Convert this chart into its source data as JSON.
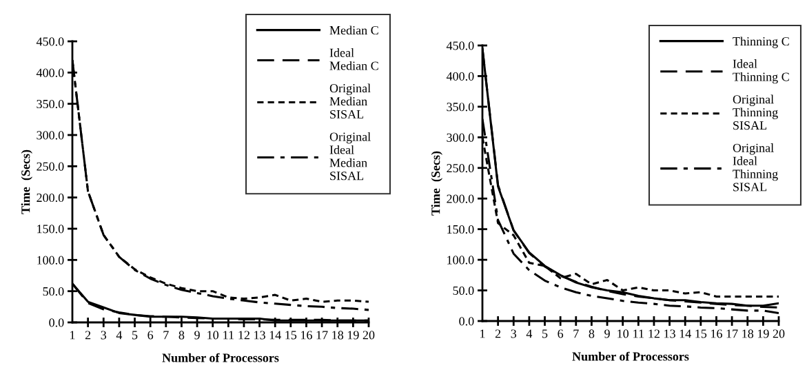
{
  "chart_data": [
    {
      "type": "line",
      "xlabel": "Number of Processors",
      "ylabel": "Time  (Secs)",
      "categories": [
        "1",
        "2",
        "3",
        "4",
        "5",
        "6",
        "7",
        "8",
        "9",
        "10",
        "11",
        "12",
        "13",
        "14",
        "15",
        "16",
        "17",
        "18",
        "19",
        "20"
      ],
      "ylim": [
        0,
        450
      ],
      "yticks": [
        {
          "value": 0,
          "label": "0.0"
        },
        {
          "value": 50,
          "label": "50.0"
        },
        {
          "value": 100,
          "label": "100.0"
        },
        {
          "value": 150,
          "label": "150.0"
        },
        {
          "value": 200,
          "label": "200.0"
        },
        {
          "value": 250,
          "label": "250.0"
        },
        {
          "value": 300,
          "label": "300.0"
        },
        {
          "value": 350,
          "label": "350.0"
        },
        {
          "value": 400,
          "label": "400.0"
        },
        {
          "value": 450,
          "label": "450.0"
        }
      ],
      "legend": "top right",
      "grid": false,
      "marker": "none",
      "series": [
        {
          "name": "Median C",
          "color": "#000000",
          "line_style": "solid",
          "values": [
            62,
            33,
            24,
            15,
            12,
            9,
            9,
            9,
            8,
            6,
            6,
            6,
            6,
            3,
            3,
            3,
            3,
            3,
            3,
            3
          ]
        },
        {
          "name": "Ideal\nMedian C",
          "color": "#000000",
          "line_style": "dashed",
          "values": [
            62,
            31,
            21,
            16,
            12,
            10,
            9,
            8,
            7,
            6,
            6,
            5,
            5,
            4,
            4,
            4,
            4,
            3,
            3,
            3
          ]
        },
        {
          "name": "Original\nMedian\nSISAL",
          "color": "#000000",
          "line_style": "dotted",
          "values": [
            420,
            210,
            140,
            105,
            85,
            72,
            62,
            55,
            50,
            50,
            40,
            38,
            40,
            44,
            35,
            38,
            33,
            35,
            35,
            33
          ]
        },
        {
          "name": "Original\nIdeal\nMedian\nSISAL",
          "color": "#000000",
          "line_style": "dashdot",
          "values": [
            420,
            210,
            140,
            105,
            84,
            70,
            60,
            52,
            47,
            42,
            38,
            35,
            32,
            30,
            28,
            26,
            25,
            23,
            22,
            20
          ]
        }
      ]
    },
    {
      "type": "line",
      "xlabel": "Number of Processors",
      "ylabel": "Time  (Secs)",
      "categories": [
        "1",
        "2",
        "3",
        "4",
        "5",
        "6",
        "7",
        "8",
        "9",
        "10",
        "11",
        "12",
        "13",
        "14",
        "15",
        "16",
        "17",
        "18",
        "19",
        "20"
      ],
      "ylim": [
        0,
        450
      ],
      "yticks": [
        {
          "value": 0,
          "label": "0.0"
        },
        {
          "value": 50,
          "label": "50.0"
        },
        {
          "value": 100,
          "label": "100.0"
        },
        {
          "value": 150,
          "label": "150.0"
        },
        {
          "value": 200,
          "label": "200.0"
        },
        {
          "value": 250,
          "label": "250.0"
        },
        {
          "value": 300,
          "label": "300.0"
        },
        {
          "value": 350,
          "label": "350.0"
        },
        {
          "value": 400,
          "label": "400.0"
        },
        {
          "value": 450,
          "label": "450.0"
        }
      ],
      "legend": "top right",
      "grid": false,
      "marker": "none",
      "series": [
        {
          "name": "Thinning C",
          "color": "#000000",
          "line_style": "solid",
          "values": [
            445,
            220,
            148,
            112,
            90,
            75,
            63,
            55,
            50,
            47,
            41,
            37,
            34,
            34,
            31,
            29,
            28,
            25,
            25,
            29
          ]
        },
        {
          "name": "Ideal\nThinning C",
          "color": "#000000",
          "line_style": "dashed",
          "values": [
            445,
            222,
            148,
            111,
            89,
            74,
            64,
            56,
            49,
            44,
            40,
            37,
            34,
            32,
            30,
            28,
            26,
            25,
            23,
            22
          ]
        },
        {
          "name": "Original\nThinning\nSISAL",
          "color": "#000000",
          "line_style": "dotted",
          "values": [
            300,
            160,
            140,
            95,
            90,
            70,
            77,
            60,
            67,
            50,
            55,
            50,
            50,
            45,
            47,
            40,
            40,
            40,
            40,
            40
          ]
        },
        {
          "name": "Original\nIdeal\nThinning\nSISAL",
          "color": "#000000",
          "line_style": "dashdot",
          "values": [
            330,
            165,
            110,
            83,
            66,
            55,
            47,
            41,
            37,
            33,
            30,
            28,
            25,
            24,
            22,
            21,
            19,
            17,
            17,
            13
          ]
        }
      ]
    }
  ]
}
